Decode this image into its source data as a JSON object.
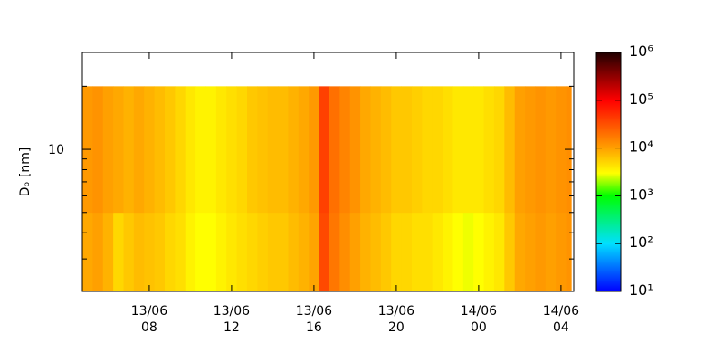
{
  "chart_data": {
    "type": "heatmap",
    "y_label": "Dₚ [nm]",
    "xlim": [
      4.75,
      28.62
    ],
    "xticks": [
      {
        "value": 8,
        "label": "13/06\n08"
      },
      {
        "value": 12,
        "label": "13/06\n12"
      },
      {
        "value": 16,
        "label": "13/06\n16"
      },
      {
        "value": 20,
        "label": "13/06\n20"
      },
      {
        "value": 24,
        "label": "14/06\n00"
      },
      {
        "value": 28,
        "label": "14/06\n04"
      }
    ],
    "ylim": [
      2.1,
      29
    ],
    "y_log": true,
    "yticks": [
      10
    ],
    "yminor": [
      3,
      4,
      5,
      6,
      7,
      8,
      9,
      20
    ],
    "bins": [
      4.75,
      5.25,
      5.75,
      6.25,
      6.75,
      7.25,
      7.75,
      8.25,
      8.75,
      9.25,
      9.75,
      10.25,
      10.75,
      11.25,
      11.75,
      12.25,
      12.75,
      13.25,
      13.75,
      14.25,
      14.75,
      15.25,
      15.75,
      16.25,
      16.75,
      17.25,
      17.75,
      18.25,
      18.75,
      19.25,
      19.75,
      20.25,
      20.75,
      21.25,
      21.75,
      22.25,
      22.75,
      23.25,
      23.75,
      24.25,
      24.75,
      25.25,
      25.75,
      26.25,
      26.75,
      27.25,
      27.75,
      28.25,
      28.5
    ],
    "y_bins": [
      2.1,
      5,
      20
    ],
    "values": [
      [
        9000,
        10000,
        8000,
        5000,
        6000,
        7000,
        6500,
        6000,
        5000,
        4500,
        3500,
        3000,
        3000,
        3500,
        4000,
        4500,
        5000,
        5500,
        6000,
        6000,
        7000,
        8000,
        9500,
        35000,
        18000,
        13000,
        10000,
        8000,
        7000,
        6000,
        5000,
        5000,
        4500,
        4500,
        4000,
        3500,
        3000,
        2800,
        3000,
        3500,
        4000,
        6000,
        9000,
        10000,
        11000,
        10000,
        11000,
        12000
      ],
      [
        11000,
        12000,
        10000,
        9000,
        8000,
        9000,
        8000,
        7000,
        6000,
        5000,
        4000,
        3500,
        3500,
        4000,
        4500,
        5000,
        6000,
        6500,
        7000,
        7000,
        8000,
        9000,
        11000,
        40000,
        20000,
        15000,
        12000,
        9000,
        8000,
        7000,
        6000,
        6000,
        5500,
        5000,
        5000,
        4500,
        4000,
        4000,
        4000,
        4500,
        5000,
        7000,
        10000,
        11000,
        12000,
        11000,
        12000,
        13000
      ]
    ],
    "colorbar": {
      "lim": [
        10,
        1000000
      ],
      "log": true,
      "ticks": [
        {
          "value": 10,
          "label": "10¹"
        },
        {
          "value": 100,
          "label": "10²"
        },
        {
          "value": 1000,
          "label": "10³"
        },
        {
          "value": 10000,
          "label": "10⁴"
        },
        {
          "value": 100000,
          "label": "10⁵"
        },
        {
          "value": 1000000,
          "label": "10⁶"
        }
      ],
      "stops": [
        [
          10,
          "#0000ff"
        ],
        [
          100,
          "#00e0ff"
        ],
        [
          1000,
          "#00ff00"
        ],
        [
          3000,
          "#ffff00"
        ],
        [
          10000,
          "#ffa000"
        ],
        [
          100000,
          "#ff0000"
        ],
        [
          1000000,
          "#200000"
        ]
      ]
    }
  }
}
